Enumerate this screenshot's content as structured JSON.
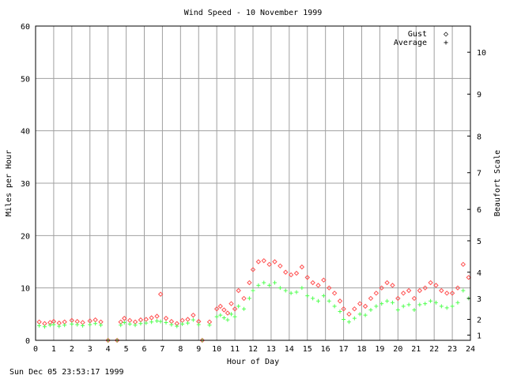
{
  "chart_data": {
    "type": "scatter",
    "title": "Wind Speed - 10 November 1999",
    "xlabel": "Hour of Day",
    "ylabel": "Miles per Hour",
    "y2label": "Beaufort Scale",
    "xlim": [
      0,
      24
    ],
    "ylim": [
      0,
      60
    ],
    "x_ticks": [
      "0",
      "1",
      "2",
      "3",
      "4",
      "5",
      "6",
      "7",
      "8",
      "9",
      "10",
      "11",
      "12",
      "13",
      "14",
      "15",
      "16",
      "17",
      "18",
      "19",
      "20",
      "21",
      "22",
      "23",
      "24"
    ],
    "y_ticks": [
      "0",
      "10",
      "20",
      "30",
      "40",
      "50",
      "60"
    ],
    "beaufort_ticks": [
      {
        "label": "1",
        "mph": 1
      },
      {
        "label": "2",
        "mph": 4
      },
      {
        "label": "3",
        "mph": 8
      },
      {
        "label": "4",
        "mph": 13
      },
      {
        "label": "5",
        "mph": 19
      },
      {
        "label": "6",
        "mph": 25
      },
      {
        "label": "7",
        "mph": 32
      },
      {
        "label": "8",
        "mph": 39
      },
      {
        "label": "9",
        "mph": 47
      },
      {
        "label": "10",
        "mph": 55
      }
    ],
    "grid": true,
    "legend_position": "top-right",
    "series": [
      {
        "name": "Gust",
        "marker": "◇",
        "color": "#ff5050",
        "x": [
          0.2,
          0.5,
          0.8,
          1.0,
          1.3,
          1.6,
          2.0,
          2.3,
          2.6,
          3.0,
          3.3,
          3.6,
          4.0,
          4.5,
          4.7,
          4.9,
          5.2,
          5.5,
          5.8,
          6.1,
          6.4,
          6.7,
          6.9,
          7.2,
          7.5,
          7.8,
          8.1,
          8.4,
          8.7,
          9.0,
          9.2,
          9.6,
          10.0,
          10.2,
          10.4,
          10.6,
          10.8,
          11.0,
          11.2,
          11.5,
          11.8,
          12.0,
          12.3,
          12.6,
          12.9,
          13.2,
          13.5,
          13.8,
          14.1,
          14.4,
          14.7,
          15.0,
          15.3,
          15.6,
          15.9,
          16.2,
          16.5,
          16.8,
          17.0,
          17.3,
          17.6,
          17.9,
          18.2,
          18.5,
          18.8,
          19.1,
          19.4,
          19.7,
          20.0,
          20.3,
          20.6,
          20.9,
          21.2,
          21.5,
          21.8,
          22.1,
          22.4,
          22.7,
          23.0,
          23.3,
          23.6,
          23.9
        ],
        "y": [
          3.5,
          3.2,
          3.4,
          3.6,
          3.3,
          3.5,
          3.8,
          3.6,
          3.4,
          3.7,
          3.9,
          3.5,
          0,
          0,
          3.5,
          4.2,
          3.8,
          3.5,
          3.9,
          4.0,
          4.3,
          4.6,
          8.8,
          4.2,
          3.6,
          3.2,
          3.8,
          4.0,
          4.8,
          3.6,
          0,
          3.5,
          6.0,
          6.5,
          5.8,
          5.2,
          7.0,
          6.0,
          9.5,
          8.0,
          11.0,
          13.5,
          15.0,
          15.2,
          14.5,
          15.0,
          14.2,
          13.0,
          12.5,
          12.8,
          14.0,
          12.0,
          11.0,
          10.5,
          11.5,
          10.0,
          9.0,
          7.5,
          6.0,
          5.0,
          6.0,
          7.0,
          6.5,
          8.0,
          9.0,
          10.0,
          11.0,
          10.5,
          8.0,
          9.0,
          9.5,
          8.0,
          9.5,
          10.0,
          11.0,
          10.5,
          9.5,
          9.0,
          9.0,
          10.0,
          14.5,
          12.0
        ]
      },
      {
        "name": "Average",
        "marker": "+",
        "color": "#50ff50",
        "x": [
          0.2,
          0.5,
          0.8,
          1.0,
          1.3,
          1.6,
          2.0,
          2.3,
          2.6,
          3.0,
          3.3,
          3.6,
          4.0,
          4.5,
          4.7,
          4.9,
          5.2,
          5.5,
          5.8,
          6.1,
          6.4,
          6.7,
          6.9,
          7.2,
          7.5,
          7.8,
          8.1,
          8.4,
          8.7,
          9.0,
          9.2,
          9.6,
          10.0,
          10.2,
          10.4,
          10.6,
          10.8,
          11.0,
          11.2,
          11.5,
          11.8,
          12.0,
          12.3,
          12.6,
          12.9,
          13.2,
          13.5,
          13.8,
          14.1,
          14.4,
          14.7,
          15.0,
          15.3,
          15.6,
          15.9,
          16.2,
          16.5,
          16.8,
          17.0,
          17.3,
          17.6,
          17.9,
          18.2,
          18.5,
          18.8,
          19.1,
          19.4,
          19.7,
          20.0,
          20.3,
          20.6,
          20.9,
          21.2,
          21.5,
          21.8,
          22.1,
          22.4,
          22.7,
          23.0,
          23.3,
          23.6,
          23.9
        ],
        "y": [
          2.8,
          2.6,
          2.9,
          3.0,
          2.7,
          2.9,
          3.1,
          3.0,
          2.8,
          3.0,
          3.2,
          2.9,
          0,
          0,
          2.9,
          3.4,
          3.1,
          2.9,
          3.2,
          3.3,
          3.5,
          3.7,
          3.6,
          3.4,
          3.0,
          2.7,
          3.1,
          3.3,
          3.9,
          3.0,
          0,
          2.9,
          4.5,
          4.8,
          4.3,
          3.9,
          5.0,
          4.5,
          6.5,
          6.0,
          8.0,
          9.5,
          10.5,
          11.0,
          10.5,
          11.0,
          10.0,
          9.5,
          9.0,
          9.2,
          10.0,
          8.5,
          8.0,
          7.5,
          8.5,
          7.5,
          6.5,
          5.5,
          4.0,
          3.5,
          4.2,
          5.0,
          4.8,
          5.8,
          6.5,
          7.0,
          7.5,
          7.2,
          5.8,
          6.5,
          6.8,
          5.8,
          6.8,
          7.0,
          7.5,
          7.2,
          6.5,
          6.2,
          6.5,
          7.2,
          9.5,
          8.0
        ]
      }
    ]
  },
  "footer_timestamp": "Sun Dec 05 23:53:17 1999"
}
